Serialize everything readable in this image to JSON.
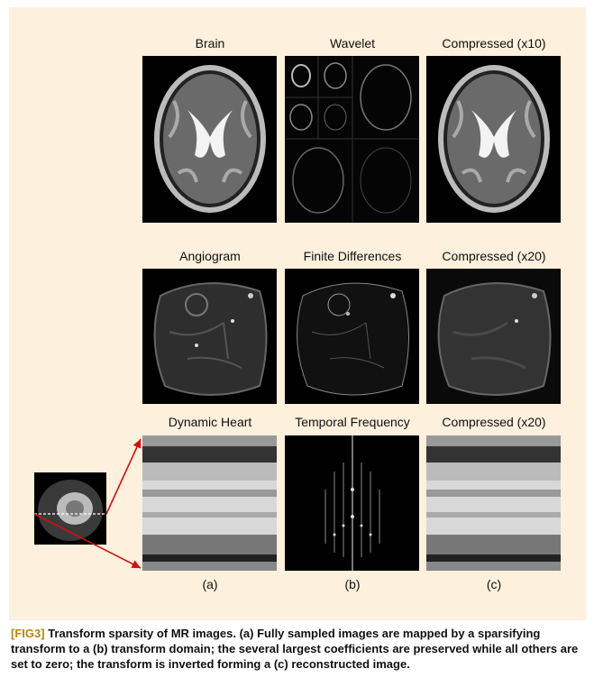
{
  "rows": [
    {
      "labels": [
        "Brain",
        "Wavelet",
        "Compressed (x10)"
      ]
    },
    {
      "labels": [
        "Angiogram",
        "Finite Differences",
        "Compressed (x20)"
      ]
    },
    {
      "labels": [
        "Dynamic Heart",
        "Temporal Frequency",
        "Compressed (x20)"
      ]
    }
  ],
  "sublabels": [
    "(a)",
    "(b)",
    "(c)"
  ],
  "caption": {
    "tag": "[FIG3]",
    "text": "Transform sparsity of MR images. (a) Fully sampled images are mapped by a sparsifying transform to a (b) transform domain; the several largest coefficients are preserved while all others are set to zero; the transform is inverted forming a (c) reconstructed image."
  },
  "colors": {
    "panel_bg": "#fdf0dc",
    "caption_tag": "#b8860b",
    "arrow": "#d01010"
  }
}
